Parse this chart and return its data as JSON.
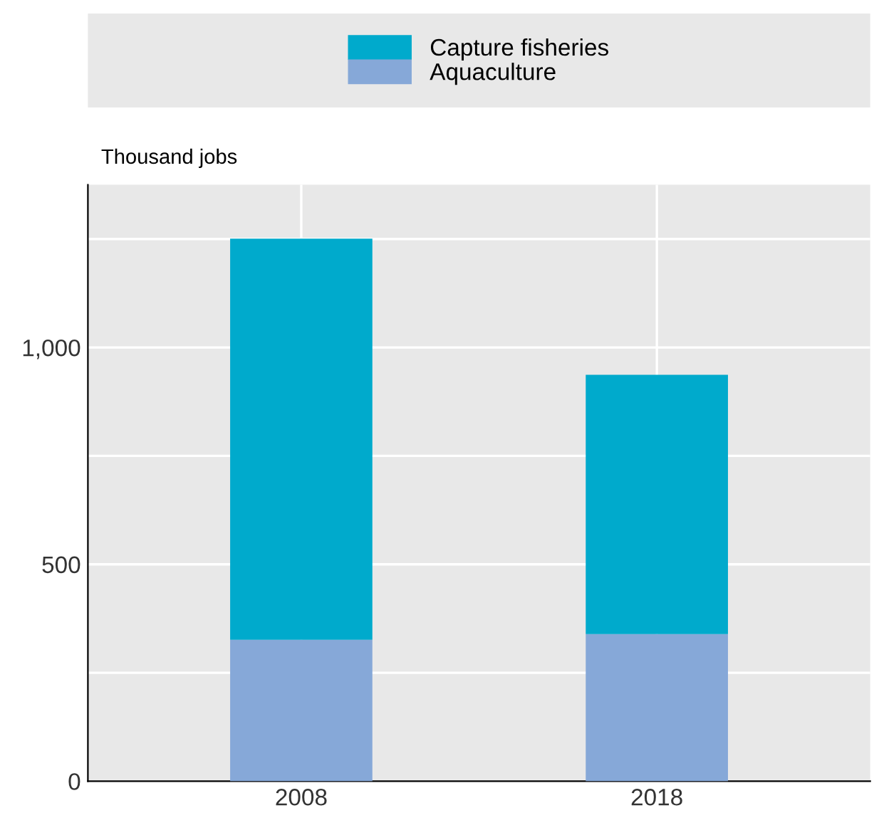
{
  "chart_data": {
    "type": "bar",
    "stacked": true,
    "ylabel": "Thousand jobs",
    "categories": [
      "2008",
      "2018"
    ],
    "series": [
      {
        "name": "Aquaculture",
        "color": "#86a8d8",
        "values": [
          326,
          339
        ]
      },
      {
        "name": "Capture fisheries",
        "color": "#00aacc",
        "values": [
          925,
          598
        ]
      }
    ],
    "ylim": [
      0,
      1375
    ],
    "yticks": [
      0,
      {
        "value": 250,
        "label": null
      },
      500,
      {
        "value": 750,
        "label": null
      },
      {
        "value": 1000,
        "label": "1,000"
      },
      {
        "value": 1250,
        "label": null
      }
    ],
    "grid": true,
    "legend": "top"
  }
}
